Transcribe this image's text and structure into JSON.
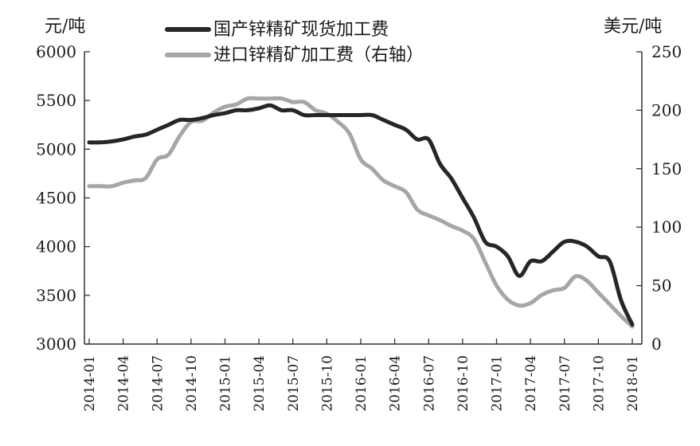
{
  "chart_data": {
    "type": "line",
    "left_axis": {
      "unit_label": "元/吨",
      "min": 3000,
      "max": 6000,
      "ticks": [
        3000,
        3500,
        4000,
        4500,
        5000,
        5500,
        6000
      ]
    },
    "right_axis": {
      "unit_label": "美元/吨",
      "min": 0,
      "max": 250,
      "ticks": [
        0,
        50,
        100,
        150,
        200,
        250
      ]
    },
    "x_tick_labels": [
      "2014-01",
      "2014-04",
      "2014-07",
      "2014-10",
      "2015-01",
      "2015-04",
      "2015-07",
      "2015-10",
      "2016-01",
      "2016-04",
      "2016-07",
      "2016-10",
      "2017-01",
      "2017-04",
      "2017-07",
      "2017-10",
      "2018-01"
    ],
    "x_start": "2014-01",
    "series": [
      {
        "name": "国产锌精矿现货加工费",
        "axis": "left",
        "color": "#262626",
        "points": [
          [
            "2014-01",
            5070
          ],
          [
            "2014-02",
            5070
          ],
          [
            "2014-03",
            5080
          ],
          [
            "2014-04",
            5100
          ],
          [
            "2014-05",
            5130
          ],
          [
            "2014-06",
            5150
          ],
          [
            "2014-07",
            5200
          ],
          [
            "2014-08",
            5250
          ],
          [
            "2014-09",
            5300
          ],
          [
            "2014-10",
            5300
          ],
          [
            "2014-11",
            5320
          ],
          [
            "2014-12",
            5350
          ],
          [
            "2015-01",
            5370
          ],
          [
            "2015-02",
            5400
          ],
          [
            "2015-03",
            5400
          ],
          [
            "2015-04",
            5420
          ],
          [
            "2015-05",
            5450
          ],
          [
            "2015-06",
            5400
          ],
          [
            "2015-07",
            5400
          ],
          [
            "2015-08",
            5350
          ],
          [
            "2015-09",
            5350
          ],
          [
            "2015-10",
            5350
          ],
          [
            "2015-11",
            5350
          ],
          [
            "2015-12",
            5350
          ],
          [
            "2016-01",
            5350
          ],
          [
            "2016-02",
            5350
          ],
          [
            "2016-03",
            5300
          ],
          [
            "2016-04",
            5250
          ],
          [
            "2016-05",
            5200
          ],
          [
            "2016-06",
            5100
          ],
          [
            "2016-07",
            5100
          ],
          [
            "2016-08",
            4850
          ],
          [
            "2016-09",
            4700
          ],
          [
            "2016-10",
            4500
          ],
          [
            "2016-11",
            4300
          ],
          [
            "2016-12",
            4050
          ],
          [
            "2017-01",
            4000
          ],
          [
            "2017-02",
            3900
          ],
          [
            "2017-03",
            3700
          ],
          [
            "2017-04",
            3850
          ],
          [
            "2017-05",
            3850
          ],
          [
            "2017-06",
            3950
          ],
          [
            "2017-07",
            4050
          ],
          [
            "2017-08",
            4050
          ],
          [
            "2017-09",
            4000
          ],
          [
            "2017-10",
            3900
          ],
          [
            "2017-11",
            3850
          ],
          [
            "2017-12",
            3450
          ],
          [
            "2018-01",
            3200
          ]
        ]
      },
      {
        "name": "进口锌精矿加工费（右轴）",
        "axis": "right",
        "color": "#a6a6a6",
        "points": [
          [
            "2014-01",
            135
          ],
          [
            "2014-02",
            135
          ],
          [
            "2014-03",
            135
          ],
          [
            "2014-04",
            138
          ],
          [
            "2014-05",
            140
          ],
          [
            "2014-06",
            142
          ],
          [
            "2014-07",
            158
          ],
          [
            "2014-08",
            162
          ],
          [
            "2014-09",
            178
          ],
          [
            "2014-10",
            190
          ],
          [
            "2014-11",
            191
          ],
          [
            "2014-12",
            198
          ],
          [
            "2015-01",
            203
          ],
          [
            "2015-02",
            205
          ],
          [
            "2015-03",
            210
          ],
          [
            "2015-04",
            210
          ],
          [
            "2015-05",
            210
          ],
          [
            "2015-06",
            210
          ],
          [
            "2015-07",
            207
          ],
          [
            "2015-08",
            207
          ],
          [
            "2015-09",
            200
          ],
          [
            "2015-10",
            197
          ],
          [
            "2015-11",
            190
          ],
          [
            "2015-12",
            180
          ],
          [
            "2016-01",
            158
          ],
          [
            "2016-02",
            150
          ],
          [
            "2016-03",
            140
          ],
          [
            "2016-04",
            135
          ],
          [
            "2016-05",
            130
          ],
          [
            "2016-06",
            115
          ],
          [
            "2016-07",
            110
          ],
          [
            "2016-08",
            106
          ],
          [
            "2016-09",
            101
          ],
          [
            "2016-10",
            97
          ],
          [
            "2016-11",
            90
          ],
          [
            "2016-12",
            70
          ],
          [
            "2017-01",
            50
          ],
          [
            "2017-02",
            38
          ],
          [
            "2017-03",
            33
          ],
          [
            "2017-04",
            35
          ],
          [
            "2017-05",
            42
          ],
          [
            "2017-06",
            46
          ],
          [
            "2017-07",
            48
          ],
          [
            "2017-08",
            58
          ],
          [
            "2017-09",
            54
          ],
          [
            "2017-10",
            44
          ],
          [
            "2017-11",
            34
          ],
          [
            "2017-12",
            24
          ],
          [
            "2018-01",
            15
          ]
        ]
      }
    ]
  }
}
